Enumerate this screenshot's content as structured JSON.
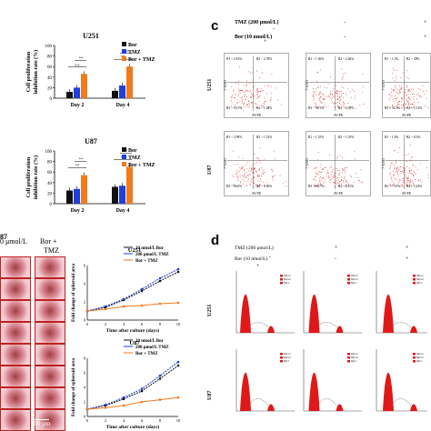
{
  "panel_letters": {
    "c": "c",
    "d": "d"
  },
  "bar_charts": [
    {
      "title": "U251",
      "ylabel_line1": "Cell proliferation",
      "ylabel_line2": "inhibition rate (%)",
      "yticks": [
        "0",
        "20",
        "40",
        "60",
        "80",
        "100"
      ],
      "ylim": [
        0,
        100
      ],
      "categories": [
        "Day 2",
        "Day 4"
      ],
      "series": [
        {
          "name": "Bor",
          "color": "#111111",
          "values": [
            12,
            14
          ]
        },
        {
          "name": "TMZ",
          "color": "#1f3fd6",
          "values": [
            20,
            24
          ]
        },
        {
          "name": "Bor + TMZ",
          "color": "#f07a1c",
          "values": [
            46,
            60
          ]
        }
      ],
      "sig_labels": [
        "n.s",
        "**",
        "**",
        "n.s"
      ]
    },
    {
      "title": "U87",
      "ylabel_line1": "Cell proliferation",
      "ylabel_line2": "inhibition rate (%)",
      "yticks": [
        "0",
        "20",
        "40",
        "60",
        "80",
        "100"
      ],
      "ylim": [
        0,
        100
      ],
      "categories": [
        "Day 2",
        "Day 4"
      ],
      "series": [
        {
          "name": "Bor",
          "color": "#111111",
          "values": [
            25,
            32
          ]
        },
        {
          "name": "TMZ",
          "color": "#1f3fd6",
          "values": [
            28,
            34
          ]
        },
        {
          "name": "Bor + TMZ",
          "color": "#f07a1c",
          "values": [
            54,
            70
          ]
        }
      ],
      "sig_labels": [
        "**",
        "**",
        "**",
        "*"
      ]
    }
  ],
  "chart_data": [
    {
      "type": "bar",
      "title": "U251",
      "categories": [
        "Day 2",
        "Day 4"
      ],
      "series": [
        {
          "name": "Bor",
          "values": [
            12,
            14
          ]
        },
        {
          "name": "TMZ",
          "values": [
            20,
            24
          ]
        },
        {
          "name": "Bor + TMZ",
          "values": [
            46,
            60
          ]
        }
      ],
      "ylabel": "Cell proliferation inhibition rate (%)",
      "ylim": [
        0,
        100
      ]
    },
    {
      "type": "bar",
      "title": "U87",
      "categories": [
        "Day 2",
        "Day 4"
      ],
      "series": [
        {
          "name": "Bor",
          "values": [
            25,
            32
          ]
        },
        {
          "name": "TMZ",
          "values": [
            28,
            34
          ]
        },
        {
          "name": "Bor + TMZ",
          "values": [
            54,
            70
          ]
        }
      ],
      "ylabel": "Cell proliferation inhibition rate (%)",
      "ylim": [
        0,
        100
      ]
    },
    {
      "type": "line",
      "title": "U251",
      "x": [
        0,
        2,
        4,
        6,
        8,
        10
      ],
      "series": [
        {
          "name": "10 nmol/L Bor",
          "values": [
            1.0,
            1.4,
            2.2,
            3.2,
            4.3,
            5.3
          ]
        },
        {
          "name": "200 μmol/L TMZ",
          "values": [
            1.0,
            1.5,
            2.3,
            3.4,
            4.6,
            5.6
          ]
        },
        {
          "name": "Bor + TMZ",
          "values": [
            1.0,
            1.2,
            1.5,
            1.6,
            1.8,
            1.9
          ]
        }
      ],
      "xlabel": "Time after culture (days)",
      "ylabel": "Fold change of spheroid area",
      "ylim": [
        0,
        6
      ]
    },
    {
      "type": "line",
      "title": "U87",
      "x": [
        0,
        2,
        4,
        6,
        8,
        10
      ],
      "series": [
        {
          "name": "10 nmol/L Bor",
          "values": [
            1.0,
            1.5,
            2.4,
            3.5,
            5.2,
            7.0
          ]
        },
        {
          "name": "200 μmol/L TMZ",
          "values": [
            1.0,
            1.6,
            2.6,
            3.8,
            5.6,
            7.5
          ]
        },
        {
          "name": "Bor + TMZ",
          "values": [
            1.0,
            1.2,
            1.5,
            2.0,
            2.3,
            2.6
          ]
        }
      ],
      "xlabel": "Time after culture (days)",
      "ylabel": "Fold change of spheroid area",
      "ylim": [
        0,
        8
      ]
    }
  ],
  "line_charts": [
    {
      "title": "U251",
      "ylabel": "Fold change of spheroid area",
      "xlabel": "Time after culture (days)",
      "ymax": 6,
      "yticks": [
        "0",
        "2",
        "4",
        "6"
      ],
      "xticks": [
        "0",
        "2",
        "4",
        "6",
        "8",
        "10"
      ],
      "x": [
        0,
        2,
        4,
        6,
        8,
        10
      ],
      "series": [
        {
          "name": "10 nmol/L Bor",
          "color": "#111111",
          "values": [
            1.0,
            1.4,
            2.2,
            3.2,
            4.3,
            5.3
          ]
        },
        {
          "name": "200 μmol/L TMZ",
          "color": "#1f3fd6",
          "values": [
            1.0,
            1.5,
            2.3,
            3.4,
            4.6,
            5.6
          ]
        },
        {
          "name": "Bor + TMZ",
          "color": "#f07a1c",
          "values": [
            1.0,
            1.2,
            1.5,
            1.6,
            1.8,
            1.9
          ]
        }
      ]
    },
    {
      "title": "U87",
      "ylabel": "Fold change of spheroid area",
      "xlabel": "Time after culture (days)",
      "ymax": 8,
      "yticks": [
        "0",
        "2",
        "4",
        "6",
        "8"
      ],
      "xticks": [
        "0",
        "2",
        "4",
        "6",
        "8",
        "10"
      ],
      "x": [
        0,
        2,
        4,
        6,
        8,
        10
      ],
      "series": [
        {
          "name": "10 nmol/L Bor",
          "color": "#111111",
          "values": [
            1.0,
            1.5,
            2.4,
            3.5,
            5.2,
            7.0
          ]
        },
        {
          "name": "200 μmol/L TMZ",
          "color": "#1f3fd6",
          "values": [
            1.0,
            1.6,
            2.6,
            3.8,
            5.6,
            7.5
          ]
        },
        {
          "name": "Bor + TMZ",
          "color": "#f07a1c",
          "values": [
            1.0,
            1.2,
            1.5,
            2.0,
            2.3,
            2.6
          ]
        }
      ]
    }
  ],
  "spheroid_panel": {
    "header_left": "μmol/L",
    "header_right": "Bor +",
    "header_right2": "TMZ",
    "header_left_prefix": "0",
    "row_label": "87",
    "scale_bar": "200 μm"
  },
  "facs_panel": {
    "row1_label": "TMZ (200 μmol/L)",
    "row2_label": "Bor (10 nmol/L)",
    "row1_signs": [
      "-",
      "-",
      "+"
    ],
    "row2_signs": [
      "+",
      "-",
      "+"
    ],
    "cell_lines": [
      "U251",
      "U87"
    ],
    "x_axis": "AV-FE",
    "y_axis": "7-AAD",
    "u251_plots": [
      {
        "q1": "B1 ~ 2.81%",
        "q2": "B2 ~ 2.78%",
        "q3": "B3 ~ 93.5%",
        "q4": "B4 ~ 1.38%"
      },
      {
        "q1": "B1 ~ 1.36%",
        "q2": "B2 ~ 2.46%",
        "q3": "B3 ~ 93.1%",
        "q4": "B4 ~ 3.00%"
      },
      {
        "q1": "B1 ~ 1.3%",
        "q2": "B2 ~ 28%",
        "q3": "B3 ~ 55.1%",
        "q4": "B4 ~ 15.4%"
      }
    ],
    "u87_plots": [
      {
        "q1": "B1 ~ 2.99%",
        "q2": "B2 ~ 1.33%",
        "q3": "B3 ~ 86.8%",
        "q4": "B4 ~ 8.96%"
      },
      {
        "q1": "B1 ~ 1.35%",
        "q2": "B2 ~ 1.55%",
        "q3": "B3 ~ 88.7%",
        "q4": "B4 ~ 8.41%"
      },
      {
        "q1": "B1 ~ 1.0%",
        "q2": "B2 ~ 8.3%",
        "q3": "B3 ~ 75.9%",
        "q4": "B4 ~ 14.8%"
      }
    ]
  },
  "cellcycle_panel": {
    "row1_label": "TMZ (200 μmol/L)",
    "row2_label": "Bor (10 nmol/L)",
    "row1_signs": [
      "-",
      "+",
      "+"
    ],
    "row2_signs": [
      "+",
      "-",
      "+"
    ],
    "cell_lines": [
      "U251",
      "U87"
    ],
    "legend": [
      "Dip G1",
      "Dip G2",
      "Dip S"
    ],
    "colors": {
      "peak": "#e01818",
      "trace": "#666666"
    }
  }
}
